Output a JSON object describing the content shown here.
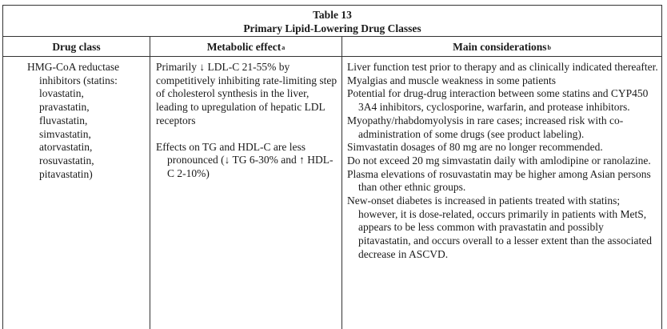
{
  "table": {
    "number": "Table 13",
    "title": "Primary Lipid-Lowering Drug Classes"
  },
  "headers": {
    "drug_class": "Drug class",
    "metabolic_effect": "Metabolic effect",
    "metabolic_effect_note": "a",
    "main_considerations": "Main considerations",
    "main_considerations_note": "b"
  },
  "row": {
    "drug_class_lines": [
      "HMG-CoA reductase",
      "inhibitors (statins:",
      "lovastatin,",
      "pravastatin,",
      "fluvastatin,",
      "simvastatin,",
      "atorvastatin,",
      "rosuvastatin,",
      "pitavastatin)"
    ],
    "metabolic_effects": [
      "Primarily ↓ LDL-C 21-55% by competitively inhibiting rate-limiting step of cholesterol synthesis in the liver, leading to upregulation of hepatic LDL receptors",
      "Effects on TG and HDL-C are less pronounced (↓ TG 6-30% and ↑ HDL-C 2-10%)"
    ],
    "considerations": [
      "Liver function test prior to therapy and as clinically indicated thereafter.",
      "Myalgias and muscle weakness in some patients",
      "Potential for drug-drug interaction between some statins and CYP450 3A4 inhibitors, cyclosporine, warfarin, and protease inhibitors.",
      "Myopathy/rhabdomyolysis in rare cases; increased risk with co-administration of some drugs (see product labeling).",
      "Simvastatin dosages of 80 mg are no longer recommended.",
      "Do not exceed 20 mg simvastatin daily with amlodipine or ranolazine.",
      "Plasma elevations of rosuvastatin may be higher among Asian persons than other ethnic groups.",
      "New-onset diabetes is increased in patients treated with statins; however, it is dose-related, occurs primarily in patients with MetS, appears to be less common with pravastatin and possibly pitavastatin, and occurs overall to a lesser extent than the associated decrease in ASCVD."
    ]
  }
}
